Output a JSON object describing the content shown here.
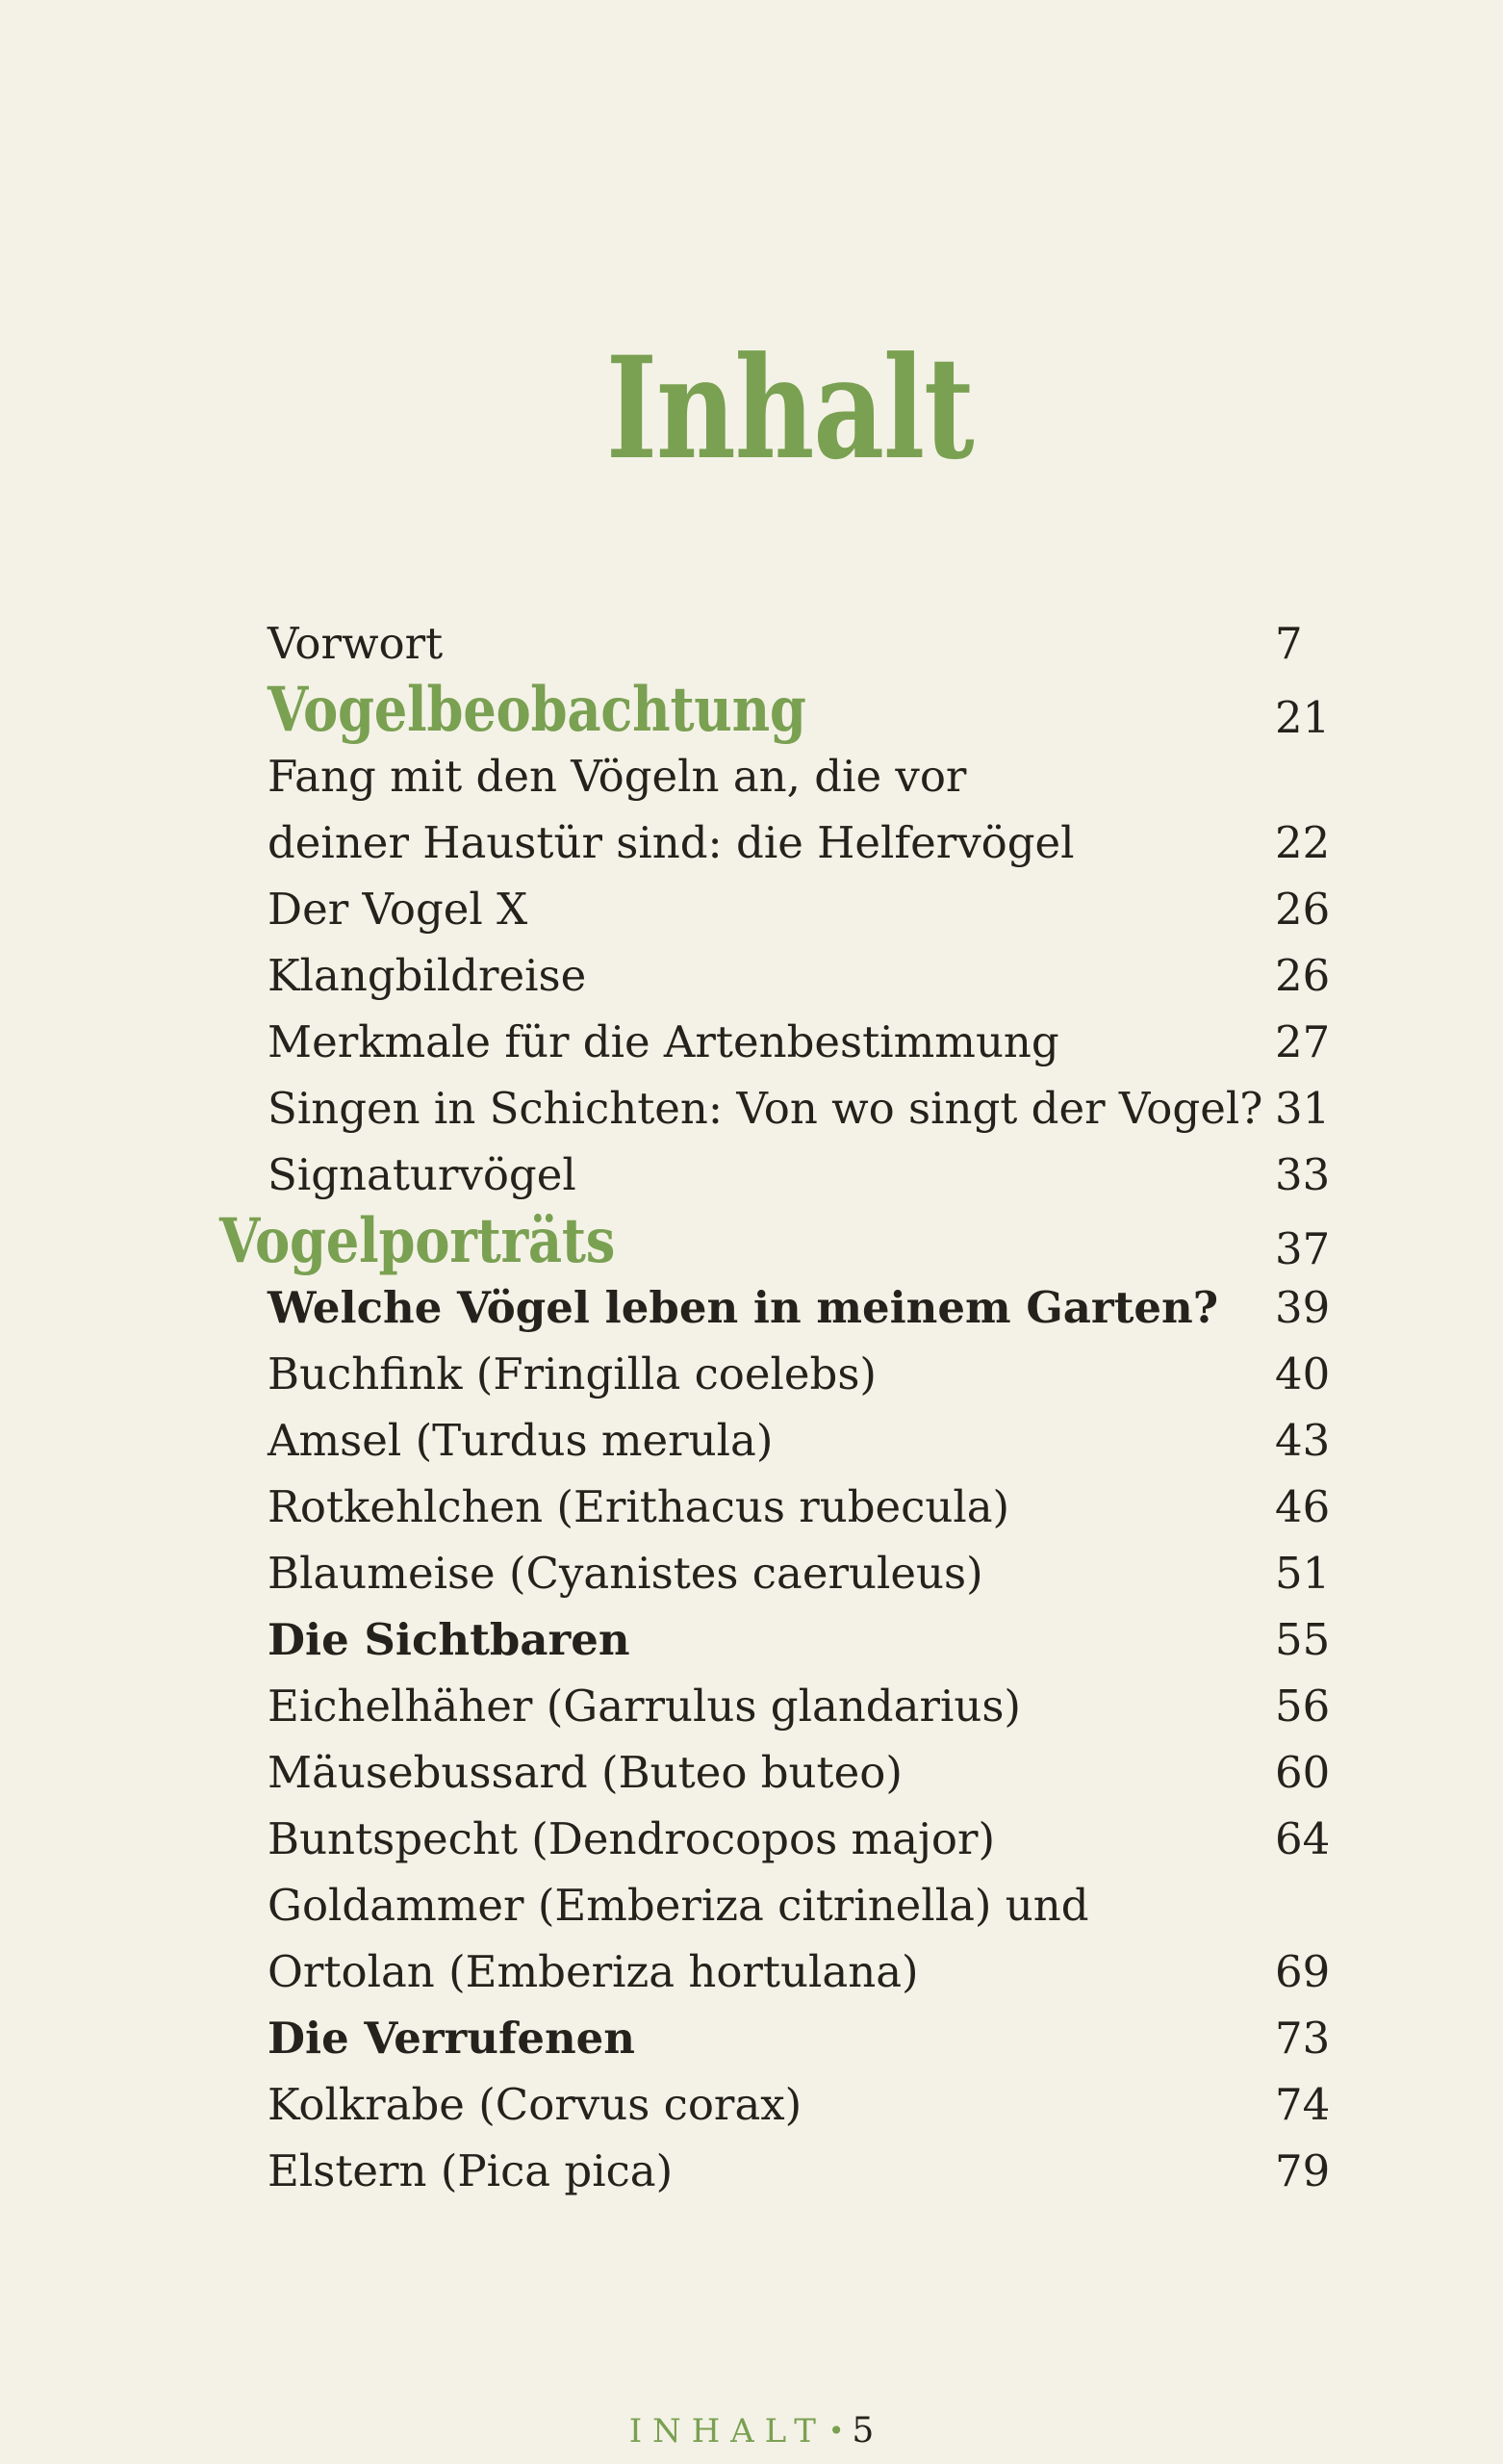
{
  "page": {
    "title": "Inhalt",
    "background_color": "#f4f2e6",
    "accent_green": "#7aa052",
    "text_color": "#24221c"
  },
  "toc": {
    "entries": [
      {
        "lines": [
          "Vorwort"
        ],
        "page": "7",
        "style": "regular"
      },
      {
        "lines": [
          "Vogelbeobachtung"
        ],
        "page": "21",
        "style": "section"
      },
      {
        "lines": [
          "Fang mit den Vögeln an, die vor",
          "deiner Haustür sind: die Helfervögel"
        ],
        "page": "22",
        "style": "regular"
      },
      {
        "lines": [
          "Der Vogel X"
        ],
        "page": "26",
        "style": "regular"
      },
      {
        "lines": [
          "Klangbildreise"
        ],
        "page": "26",
        "style": "regular"
      },
      {
        "lines": [
          "Merkmale für die Artenbestimmung"
        ],
        "page": "27",
        "style": "regular"
      },
      {
        "lines": [
          "Singen in Schichten: Von wo singt der Vogel?"
        ],
        "page": "31",
        "style": "regular"
      },
      {
        "lines": [
          "Signaturvögel"
        ],
        "page": "33",
        "style": "regular"
      },
      {
        "lines": [
          "Vogelporträts"
        ],
        "page": "37",
        "style": "section",
        "outdent": true
      },
      {
        "lines": [
          "Welche Vögel leben in meinem Garten?"
        ],
        "page": "39",
        "style": "bold"
      },
      {
        "lines": [
          "Buchfink (Fringilla coelebs)"
        ],
        "page": "40",
        "style": "regular"
      },
      {
        "lines": [
          "Amsel (Turdus merula)"
        ],
        "page": "43",
        "style": "regular"
      },
      {
        "lines": [
          "Rotkehlchen (Erithacus rubecula)"
        ],
        "page": "46",
        "style": "regular"
      },
      {
        "lines": [
          "Blaumeise (Cyanistes caeruleus)"
        ],
        "page": "51",
        "style": "regular"
      },
      {
        "lines": [
          "Die Sichtbaren"
        ],
        "page": "55",
        "style": "bold"
      },
      {
        "lines": [
          "Eichelhäher (Garrulus glandarius)"
        ],
        "page": "56",
        "style": "regular"
      },
      {
        "lines": [
          "Mäusebussard (Buteo buteo)"
        ],
        "page": "60",
        "style": "regular"
      },
      {
        "lines": [
          "Buntspecht (Dendrocopos major)"
        ],
        "page": "64",
        "style": "regular"
      },
      {
        "lines": [
          "Goldammer (Emberiza citrinella) und",
          "Ortolan (Emberiza hortulana)"
        ],
        "page": "69",
        "style": "regular"
      },
      {
        "lines": [
          "Die Verrufenen"
        ],
        "page": "73",
        "style": "bold"
      },
      {
        "lines": [
          "Kolkrabe (Corvus corax)"
        ],
        "page": "74",
        "style": "regular"
      },
      {
        "lines": [
          "Elstern (Pica pica)"
        ],
        "page": "79",
        "style": "regular"
      }
    ]
  },
  "footer": {
    "section_label": "INHALT",
    "separator": "•",
    "page_number": "5"
  }
}
